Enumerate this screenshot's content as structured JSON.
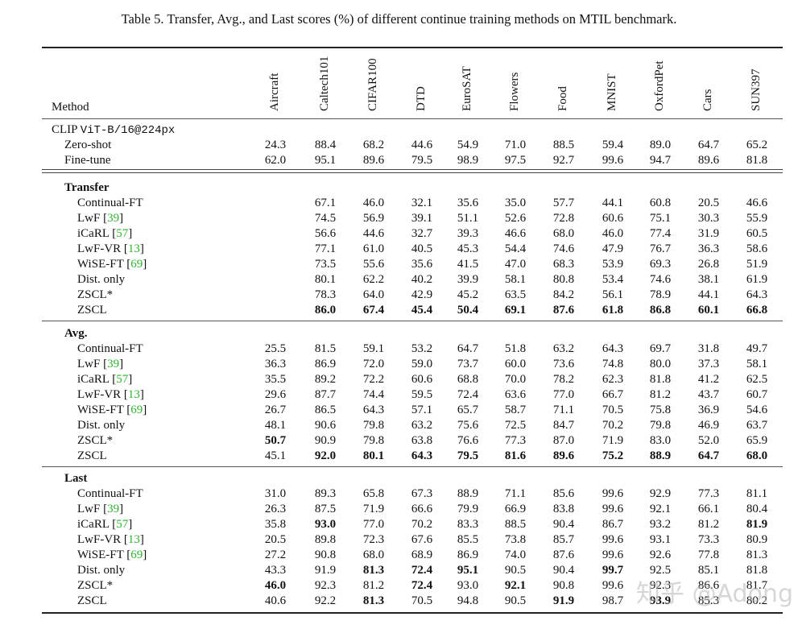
{
  "caption": "Table 5. Transfer, Avg., and Last scores (%) of different continue training methods on MTIL benchmark.",
  "table": {
    "method_header": "Method",
    "columns": [
      "Aircraft",
      "Caltech101",
      "CIFAR100",
      "DTD",
      "EuroSAT",
      "Flowers",
      "Food",
      "MNIST",
      "OxfordPet",
      "Cars",
      "SUN397"
    ],
    "clip_group": {
      "label": "CLIP",
      "model": "ViT-B/16@224px",
      "rows": [
        {
          "method": "Zero-shot",
          "values": [
            "24.3",
            "88.4",
            "68.2",
            "44.6",
            "54.9",
            "71.0",
            "88.5",
            "59.4",
            "89.0",
            "64.7",
            "65.2"
          ],
          "bold": []
        },
        {
          "method": "Fine-tune",
          "values": [
            "62.0",
            "95.1",
            "89.6",
            "79.5",
            "98.9",
            "97.5",
            "92.7",
            "99.6",
            "94.7",
            "89.6",
            "81.8"
          ],
          "bold": []
        }
      ]
    },
    "sections": [
      {
        "title": "Transfer",
        "rows": [
          {
            "method": "Continual-FT",
            "cite": "",
            "values": [
              "",
              "67.1",
              "46.0",
              "32.1",
              "35.6",
              "35.0",
              "57.7",
              "44.1",
              "60.8",
              "20.5",
              "46.6"
            ],
            "bold": []
          },
          {
            "method": "LwF",
            "cite": "39",
            "values": [
              "",
              "74.5",
              "56.9",
              "39.1",
              "51.1",
              "52.6",
              "72.8",
              "60.6",
              "75.1",
              "30.3",
              "55.9"
            ],
            "bold": []
          },
          {
            "method": "iCaRL",
            "cite": "57",
            "values": [
              "",
              "56.6",
              "44.6",
              "32.7",
              "39.3",
              "46.6",
              "68.0",
              "46.0",
              "77.4",
              "31.9",
              "60.5"
            ],
            "bold": []
          },
          {
            "method": "LwF-VR",
            "cite": "13",
            "values": [
              "",
              "77.1",
              "61.0",
              "40.5",
              "45.3",
              "54.4",
              "74.6",
              "47.9",
              "76.7",
              "36.3",
              "58.6"
            ],
            "bold": []
          },
          {
            "method": "WiSE-FT",
            "cite": "69",
            "values": [
              "",
              "73.5",
              "55.6",
              "35.6",
              "41.5",
              "47.0",
              "68.3",
              "53.9",
              "69.3",
              "26.8",
              "51.9"
            ],
            "bold": []
          },
          {
            "method": "Dist. only",
            "cite": "",
            "values": [
              "",
              "80.1",
              "62.2",
              "40.2",
              "39.9",
              "58.1",
              "80.8",
              "53.4",
              "74.6",
              "38.1",
              "61.9"
            ],
            "bold": []
          },
          {
            "method": "ZSCL*",
            "cite": "",
            "values": [
              "",
              "78.3",
              "64.0",
              "42.9",
              "45.2",
              "63.5",
              "84.2",
              "56.1",
              "78.9",
              "44.1",
              "64.3"
            ],
            "bold": []
          },
          {
            "method": "ZSCL",
            "cite": "",
            "values": [
              "",
              "86.0",
              "67.4",
              "45.4",
              "50.4",
              "69.1",
              "87.6",
              "61.8",
              "86.8",
              "60.1",
              "66.8"
            ],
            "bold": [
              1,
              2,
              3,
              4,
              5,
              6,
              7,
              8,
              9,
              10
            ]
          }
        ]
      },
      {
        "title": "Avg.",
        "rows": [
          {
            "method": "Continual-FT",
            "cite": "",
            "values": [
              "25.5",
              "81.5",
              "59.1",
              "53.2",
              "64.7",
              "51.8",
              "63.2",
              "64.3",
              "69.7",
              "31.8",
              "49.7"
            ],
            "bold": []
          },
          {
            "method": "LwF",
            "cite": "39",
            "values": [
              "36.3",
              "86.9",
              "72.0",
              "59.0",
              "73.7",
              "60.0",
              "73.6",
              "74.8",
              "80.0",
              "37.3",
              "58.1"
            ],
            "bold": []
          },
          {
            "method": "iCaRL",
            "cite": "57",
            "values": [
              "35.5",
              "89.2",
              "72.2",
              "60.6",
              "68.8",
              "70.0",
              "78.2",
              "62.3",
              "81.8",
              "41.2",
              "62.5"
            ],
            "bold": []
          },
          {
            "method": "LwF-VR",
            "cite": "13",
            "values": [
              "29.6",
              "87.7",
              "74.4",
              "59.5",
              "72.4",
              "63.6",
              "77.0",
              "66.7",
              "81.2",
              "43.7",
              "60.7"
            ],
            "bold": []
          },
          {
            "method": "WiSE-FT",
            "cite": "69",
            "values": [
              "26.7",
              "86.5",
              "64.3",
              "57.1",
              "65.7",
              "58.7",
              "71.1",
              "70.5",
              "75.8",
              "36.9",
              "54.6"
            ],
            "bold": []
          },
          {
            "method": "Dist. only",
            "cite": "",
            "values": [
              "48.1",
              "90.6",
              "79.8",
              "63.2",
              "75.6",
              "72.5",
              "84.7",
              "70.2",
              "79.8",
              "46.9",
              "63.7"
            ],
            "bold": []
          },
          {
            "method": "ZSCL*",
            "cite": "",
            "values": [
              "50.7",
              "90.9",
              "79.8",
              "63.8",
              "76.6",
              "77.3",
              "87.0",
              "71.9",
              "83.0",
              "52.0",
              "65.9"
            ],
            "bold": [
              0
            ]
          },
          {
            "method": "ZSCL",
            "cite": "",
            "values": [
              "45.1",
              "92.0",
              "80.1",
              "64.3",
              "79.5",
              "81.6",
              "89.6",
              "75.2",
              "88.9",
              "64.7",
              "68.0"
            ],
            "bold": [
              1,
              2,
              3,
              4,
              5,
              6,
              7,
              8,
              9,
              10
            ]
          }
        ]
      },
      {
        "title": "Last",
        "rows": [
          {
            "method": "Continual-FT",
            "cite": "",
            "values": [
              "31.0",
              "89.3",
              "65.8",
              "67.3",
              "88.9",
              "71.1",
              "85.6",
              "99.6",
              "92.9",
              "77.3",
              "81.1"
            ],
            "bold": []
          },
          {
            "method": "LwF",
            "cite": "39",
            "values": [
              "26.3",
              "87.5",
              "71.9",
              "66.6",
              "79.9",
              "66.9",
              "83.8",
              "99.6",
              "92.1",
              "66.1",
              "80.4"
            ],
            "bold": []
          },
          {
            "method": "iCaRL",
            "cite": "57",
            "values": [
              "35.8",
              "93.0",
              "77.0",
              "70.2",
              "83.3",
              "88.5",
              "90.4",
              "86.7",
              "93.2",
              "81.2",
              "81.9"
            ],
            "bold": [
              1,
              10
            ]
          },
          {
            "method": "LwF-VR",
            "cite": "13",
            "values": [
              "20.5",
              "89.8",
              "72.3",
              "67.6",
              "85.5",
              "73.8",
              "85.7",
              "99.6",
              "93.1",
              "73.3",
              "80.9"
            ],
            "bold": []
          },
          {
            "method": "WiSE-FT",
            "cite": "69",
            "values": [
              "27.2",
              "90.8",
              "68.0",
              "68.9",
              "86.9",
              "74.0",
              "87.6",
              "99.6",
              "92.6",
              "77.8",
              "81.3"
            ],
            "bold": []
          },
          {
            "method": "Dist. only",
            "cite": "",
            "values": [
              "43.3",
              "91.9",
              "81.3",
              "72.4",
              "95.1",
              "90.5",
              "90.4",
              "99.7",
              "92.5",
              "85.1",
              "81.8"
            ],
            "bold": [
              2,
              3,
              4,
              7
            ]
          },
          {
            "method": "ZSCL*",
            "cite": "",
            "values": [
              "46.0",
              "92.3",
              "81.2",
              "72.4",
              "93.0",
              "92.1",
              "90.8",
              "99.6",
              "92.3",
              "86.6",
              "81.7"
            ],
            "bold": [
              0,
              3,
              5
            ]
          },
          {
            "method": "ZSCL",
            "cite": "",
            "values": [
              "40.6",
              "92.2",
              "81.3",
              "70.5",
              "94.8",
              "90.5",
              "91.9",
              "98.7",
              "93.9",
              "85.3",
              "80.2"
            ],
            "bold": [
              2,
              6,
              8
            ]
          }
        ]
      }
    ]
  },
  "watermark": "知乎 @Adong"
}
